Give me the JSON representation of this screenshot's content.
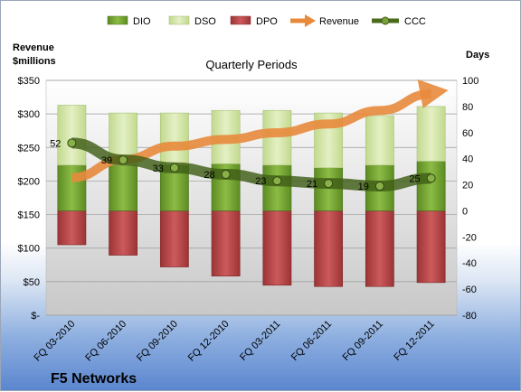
{
  "chart_data": {
    "type": "bar",
    "title": "Quarterly Periods",
    "company": "F5 Networks",
    "left_axis_title": [
      "Revenue",
      "$millions"
    ],
    "right_axis_title": "Days",
    "legend": [
      "DIO",
      "DSO",
      "DPO",
      "Revenue",
      "CCC"
    ],
    "categories": [
      "FQ 03-2010",
      "FQ 06-2010",
      "FQ 09-2010",
      "FQ 12-2010",
      "FQ 03-2011",
      "FQ 06-2011",
      "FQ 09-2011",
      "FQ 12-2011"
    ],
    "left_ticks": [
      "$-",
      "$50",
      "$100",
      "$150",
      "$200",
      "$250",
      "$300",
      "$350"
    ],
    "right_ticks": [
      "-80",
      "-60",
      "-40",
      "-20",
      "0",
      "20",
      "40",
      "60",
      "80",
      "100"
    ],
    "ylim_left": [
      0,
      350
    ],
    "ylim_right": [
      -80,
      100
    ],
    "series": [
      {
        "name": "DIO",
        "axis": "right",
        "values": [
          35,
          35,
          35,
          36,
          35,
          33,
          35,
          38
        ]
      },
      {
        "name": "DSO",
        "axis": "right",
        "values": [
          46,
          40,
          40,
          41,
          42,
          42,
          38,
          42
        ]
      },
      {
        "name": "DPO",
        "axis": "right",
        "values": [
          -26,
          -34,
          -43,
          -50,
          -57,
          -58,
          -58,
          -55
        ]
      },
      {
        "name": "Revenue",
        "axis": "left",
        "values": [
          205,
          232,
          252,
          262,
          272,
          285,
          305,
          330
        ]
      },
      {
        "name": "CCC",
        "axis": "right",
        "values": [
          52,
          39,
          33,
          28,
          23,
          21,
          19,
          25
        ]
      }
    ],
    "ccc_labels": [
      "52",
      "39",
      "33",
      "28",
      "23",
      "21",
      "19",
      "25"
    ],
    "colors": {
      "DIO": "#6e9e2e",
      "DSO": "#d3e6a6",
      "DPO": "#b94a4c",
      "Revenue": "#e88a3c",
      "CCC": "#4a6a1c"
    }
  }
}
